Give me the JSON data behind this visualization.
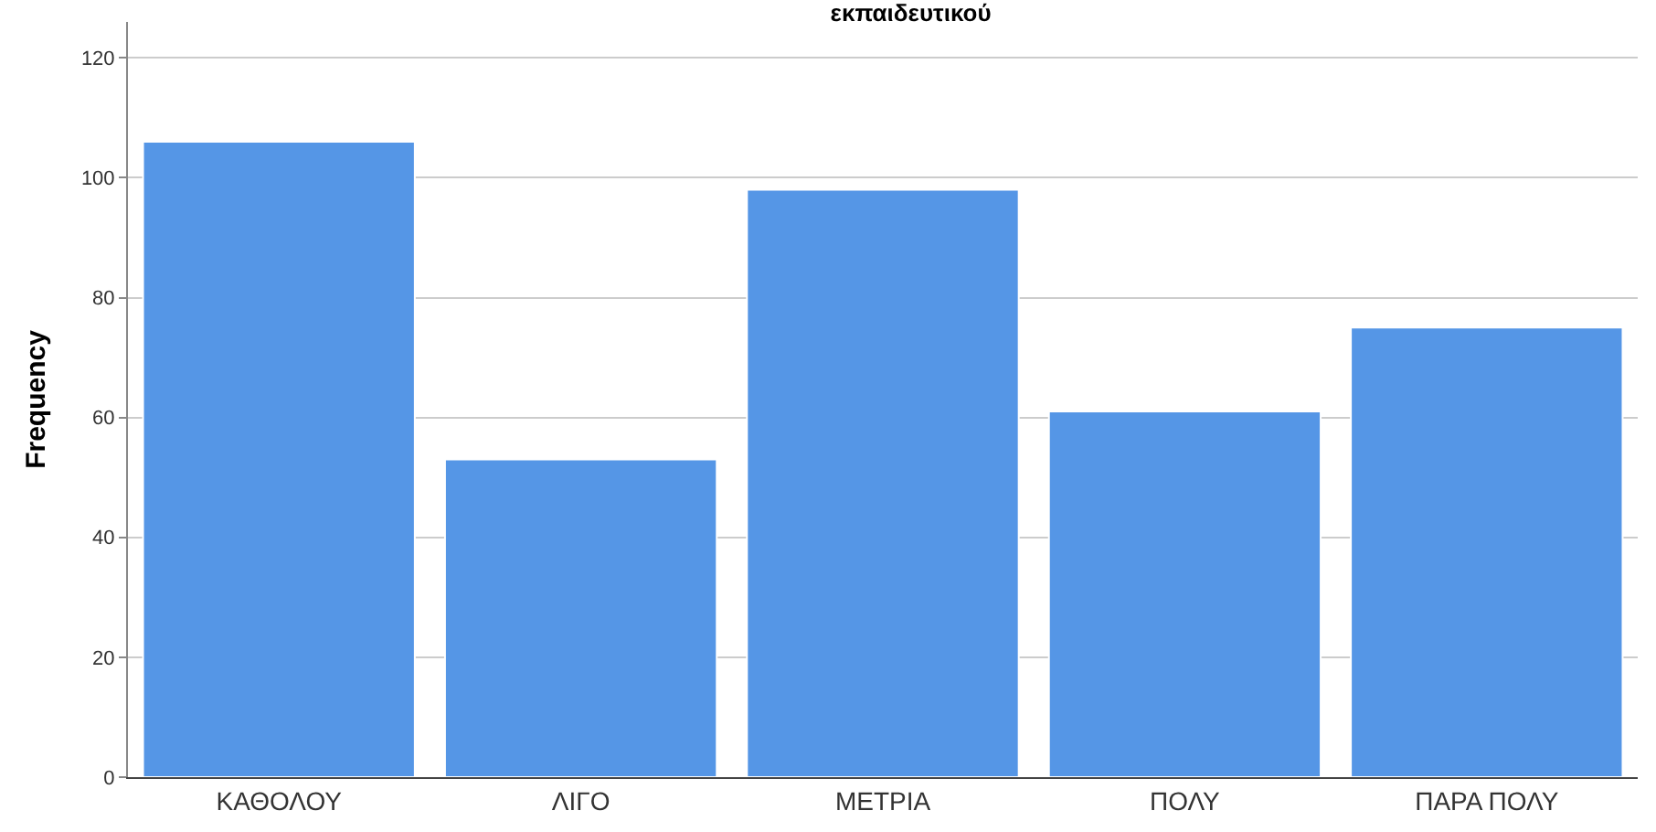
{
  "chart_data": {
    "type": "bar",
    "title": "εκπαιδευτικού",
    "ylabel": "Frequency",
    "categories": [
      "ΚΑΘΟΛΟΥ",
      "ΛΙΓΟ",
      "ΜΕΤΡΙΑ",
      "ΠΟΛΥ",
      "ΠΑΡΑ ΠΟΛΥ"
    ],
    "values": [
      106,
      53,
      98,
      61,
      75
    ],
    "color": "#5596e6",
    "ylim": [
      0,
      126
    ],
    "yticks": [
      0,
      20,
      40,
      60,
      80,
      100,
      120
    ],
    "grid": "y",
    "legend": false
  }
}
